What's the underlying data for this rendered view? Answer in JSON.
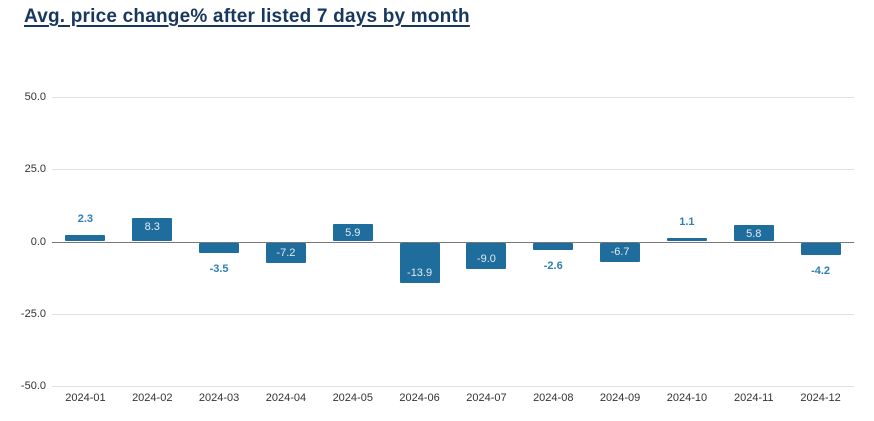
{
  "title": "Avg. price change% after listed 7 days by month",
  "colors": {
    "bar": "#1e6d9c",
    "label_inside": "#e4ebf1",
    "label_outside": "#2f7fb2",
    "title_text": "#17375e",
    "axis_text": "#333333",
    "gridline": "#e0e0e0",
    "zero_line": "#777777",
    "background": "#ffffff"
  },
  "chart_data": {
    "type": "bar",
    "title": "Avg. price change% after listed 7 days by month",
    "categories": [
      "2024-01",
      "2024-02",
      "2024-03",
      "2024-04",
      "2024-05",
      "2024-06",
      "2024-07",
      "2024-08",
      "2024-09",
      "2024-10",
      "2024-11",
      "2024-12"
    ],
    "values": [
      2.3,
      8.3,
      -3.5,
      -7.2,
      5.9,
      -13.9,
      -9.0,
      -2.6,
      -6.7,
      1.1,
      5.8,
      -4.2
    ],
    "labels": [
      "2.3",
      "8.3",
      "-3.5",
      "-7.2",
      "5.9",
      "-13.9",
      "-9.0",
      "-2.6",
      "-6.7",
      "1.1",
      "5.8",
      "-4.2"
    ],
    "y_ticks": [
      50.0,
      25.0,
      0.0,
      -25.0,
      -50.0
    ],
    "y_tick_labels": [
      "50.0",
      "25.0",
      "0.0",
      "-25.0",
      "-50.0"
    ],
    "ylim": [
      -50,
      50
    ],
    "xlabel": "",
    "ylabel": "",
    "grid": true,
    "legend_position": "none",
    "label_inside_threshold": 5
  }
}
